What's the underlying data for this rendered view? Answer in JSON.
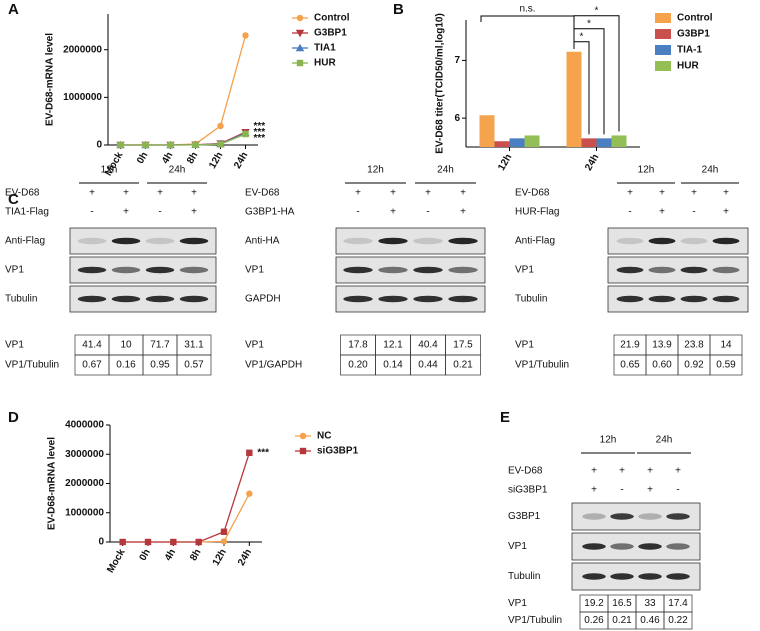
{
  "panels": [
    "A",
    "B",
    "C",
    "D",
    "E"
  ],
  "chart_data": [
    {
      "type": "line",
      "ylabel": "EV-D68-mRNA level",
      "categories": [
        "Mock",
        "0h",
        "4h",
        "8h",
        "12h",
        "24h"
      ],
      "ylim": [
        0,
        2750000
      ],
      "yticks": [
        0,
        1000000,
        2000000
      ],
      "series": [
        {
          "name": "Control",
          "color": "#f5a04a",
          "marker": "circle",
          "values": [
            0,
            0,
            2000,
            20000,
            400000,
            2300000
          ]
        },
        {
          "name": "G3BP1",
          "color": "#b5373c",
          "marker": "triangle-down",
          "values": [
            0,
            0,
            0,
            5000,
            30000,
            270000
          ]
        },
        {
          "name": "TIA1",
          "color": "#4a7cc0",
          "marker": "triangle",
          "values": [
            0,
            0,
            0,
            3000,
            20000,
            250000
          ]
        },
        {
          "name": "HUR",
          "color": "#8ab450",
          "marker": "square",
          "values": [
            0,
            0,
            0,
            2000,
            15000,
            230000
          ]
        }
      ],
      "annotations": [
        "***",
        "***",
        "***"
      ]
    },
    {
      "type": "bar",
      "ylabel": "EV-D68 titer(TCID50/ml,log10)",
      "categories": [
        "12h",
        "24h"
      ],
      "ylim": [
        5.5,
        7.7
      ],
      "yticks": [
        6,
        7
      ],
      "series": [
        {
          "name": "Control",
          "color": "#f6a34e",
          "values": [
            6.05,
            7.15
          ]
        },
        {
          "name": "G3BP1",
          "color": "#c9504c",
          "values": [
            5.6,
            5.65
          ]
        },
        {
          "name": "TIA-1",
          "color": "#4a7fc1",
          "values": [
            5.65,
            5.65
          ]
        },
        {
          "name": "HUR",
          "color": "#94bf57",
          "values": [
            5.7,
            5.7
          ]
        }
      ],
      "annotations": [
        "n.s.",
        "*",
        "*",
        "*"
      ]
    },
    {
      "type": "line",
      "ylabel": "EV-D68-mRNA level",
      "categories": [
        "Mock",
        "0h",
        "4h",
        "8h",
        "12h",
        "24h"
      ],
      "ylim": [
        0,
        4000000
      ],
      "yticks": [
        0,
        1000000,
        2000000,
        3000000,
        4000000
      ],
      "series": [
        {
          "name": "NC",
          "color": "#f5a04a",
          "marker": "circle",
          "values": [
            0,
            0,
            0,
            0,
            20000,
            1650000
          ]
        },
        {
          "name": "siG3BP1",
          "color": "#b5373c",
          "marker": "square",
          "values": [
            0,
            0,
            0,
            0,
            350000,
            3050000
          ]
        }
      ],
      "annotations": [
        "***"
      ]
    }
  ],
  "blots": [
    {
      "times": [
        "12h",
        "24h"
      ],
      "conditions": [
        {
          "label": "EV-D68",
          "signs": [
            "+",
            "+",
            "+",
            "+"
          ]
        },
        {
          "label": "TIA1-Flag",
          "signs": [
            "-",
            "+",
            "-",
            "+"
          ]
        }
      ],
      "bands": [
        "Anti-Flag",
        "VP1",
        "Tubulin"
      ],
      "quant": [
        {
          "label": "VP1",
          "values": [
            "41.4",
            "10",
            "71.7",
            "31.1"
          ]
        },
        {
          "label": "VP1/Tubulin",
          "values": [
            "0.67",
            "0.16",
            "0.95",
            "0.57"
          ]
        }
      ]
    },
    {
      "times": [
        "12h",
        "24h"
      ],
      "conditions": [
        {
          "label": "EV-D68",
          "signs": [
            "+",
            "+",
            "+",
            "+"
          ]
        },
        {
          "label": "G3BP1-HA",
          "signs": [
            "-",
            "+",
            "-",
            "+"
          ]
        }
      ],
      "bands": [
        "Anti-HA",
        "VP1",
        "GAPDH"
      ],
      "quant": [
        {
          "label": "VP1",
          "values": [
            "17.8",
            "12.1",
            "40.4",
            "17.5"
          ]
        },
        {
          "label": "VP1/GAPDH",
          "values": [
            "0.20",
            "0.14",
            "0.44",
            "0.21"
          ]
        }
      ]
    },
    {
      "times": [
        "12h",
        "24h"
      ],
      "conditions": [
        {
          "label": "EV-D68",
          "signs": [
            "+",
            "+",
            "+",
            "+"
          ]
        },
        {
          "label": "HUR-Flag",
          "signs": [
            "-",
            "+",
            "-",
            "+"
          ]
        }
      ],
      "bands": [
        "Anti-Flag",
        "VP1",
        "Tubulin"
      ],
      "quant": [
        {
          "label": "VP1",
          "values": [
            "21.9",
            "13.9",
            "23.8",
            "14"
          ]
        },
        {
          "label": "VP1/Tubulin",
          "values": [
            "0.65",
            "0.60",
            "0.92",
            "0.59"
          ]
        }
      ]
    },
    {
      "times": [
        "12h",
        "24h"
      ],
      "conditions": [
        {
          "label": "EV-D68",
          "signs": [
            "+",
            "+",
            "+",
            "+"
          ]
        },
        {
          "label": "siG3BP1",
          "signs": [
            "+",
            "-",
            "+",
            "-"
          ]
        }
      ],
      "bands": [
        "G3BP1",
        "VP1",
        "Tubulin"
      ],
      "quant": [
        {
          "label": "VP1",
          "values": [
            "19.2",
            "16.5",
            "33",
            "17.4"
          ]
        },
        {
          "label": "VP1/Tubulin",
          "values": [
            "0.26",
            "0.21",
            "0.46",
            "0.22"
          ]
        }
      ]
    }
  ]
}
